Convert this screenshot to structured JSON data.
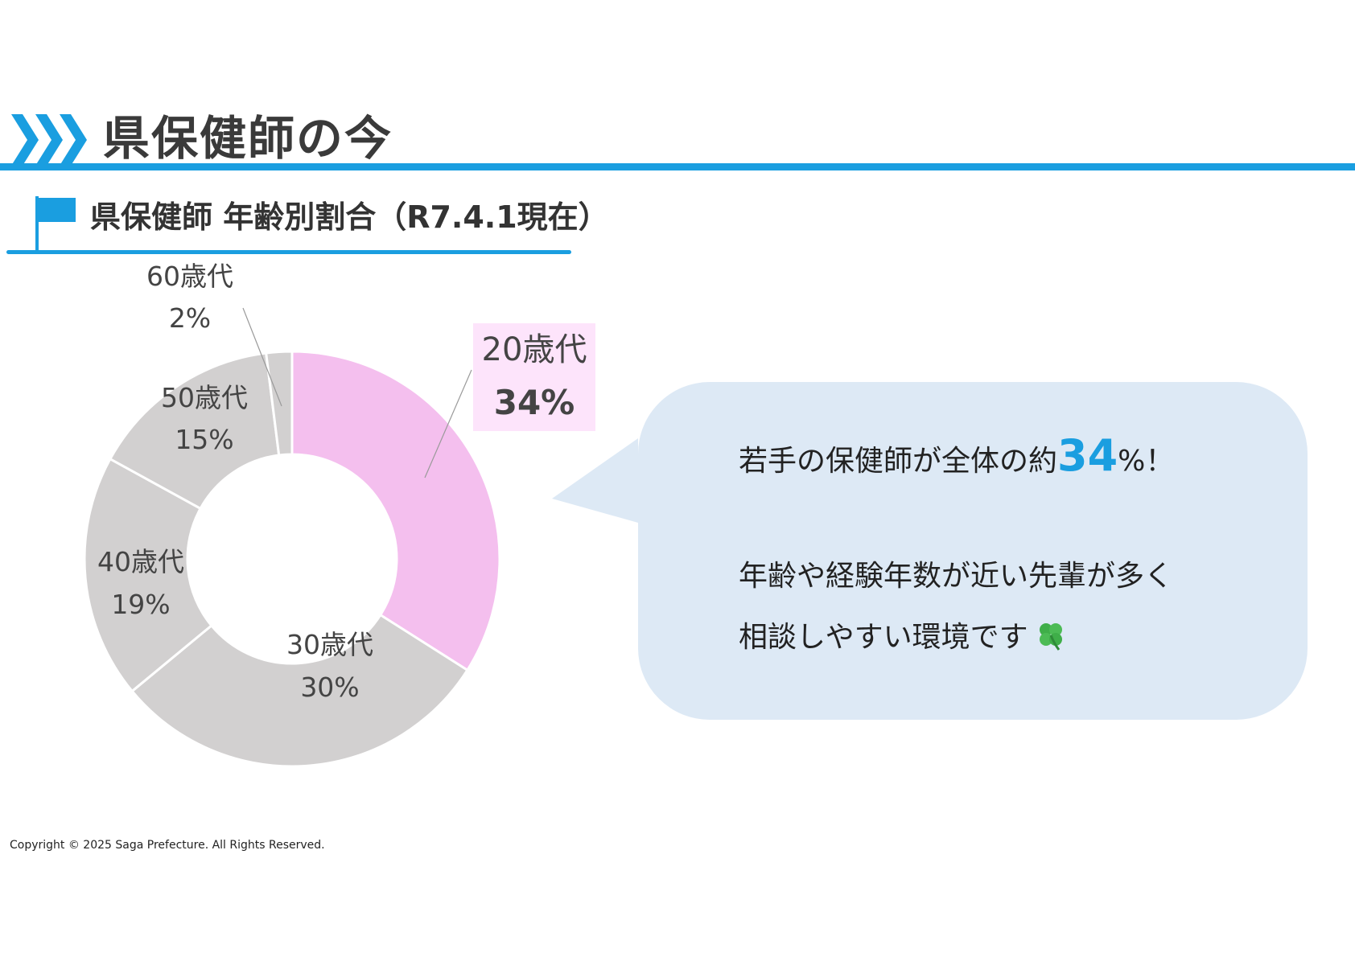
{
  "header": {
    "title": "県保健師の今"
  },
  "section": {
    "title": "県保健師 年齢別割合（R7.4.1現在）"
  },
  "chart_data": {
    "type": "pie",
    "donut": true,
    "title": "",
    "categories": [
      "20歳代",
      "30歳代",
      "40歳代",
      "50歳代",
      "60歳代"
    ],
    "values": [
      34,
      30,
      19,
      15,
      2
    ],
    "value_labels": [
      "34%",
      "30%",
      "19%",
      "15%",
      "2%"
    ],
    "highlight": "20歳代",
    "colors": [
      "#f4bfee",
      "#d2d0d0",
      "#d2d0d0",
      "#d2d0d0",
      "#d2d0d0"
    ],
    "legend": "none"
  },
  "callout": {
    "line1_before": "若手の保健師が全体の約",
    "line1_highlight": "34",
    "line1_after": "%！",
    "line2": "年齢や経験年数が近い先輩が多く",
    "line3": "相談しやすい環境です",
    "icon": "clover-icon"
  },
  "footer": {
    "copyright": "Copyright © 2025 Saga Prefecture. All Rights Reserved."
  },
  "colors": {
    "accent": "#1a9ee0",
    "bubble": "#dde9f5",
    "highlight_slice": "#f4bfee",
    "other_slice": "#d2d0d0"
  }
}
